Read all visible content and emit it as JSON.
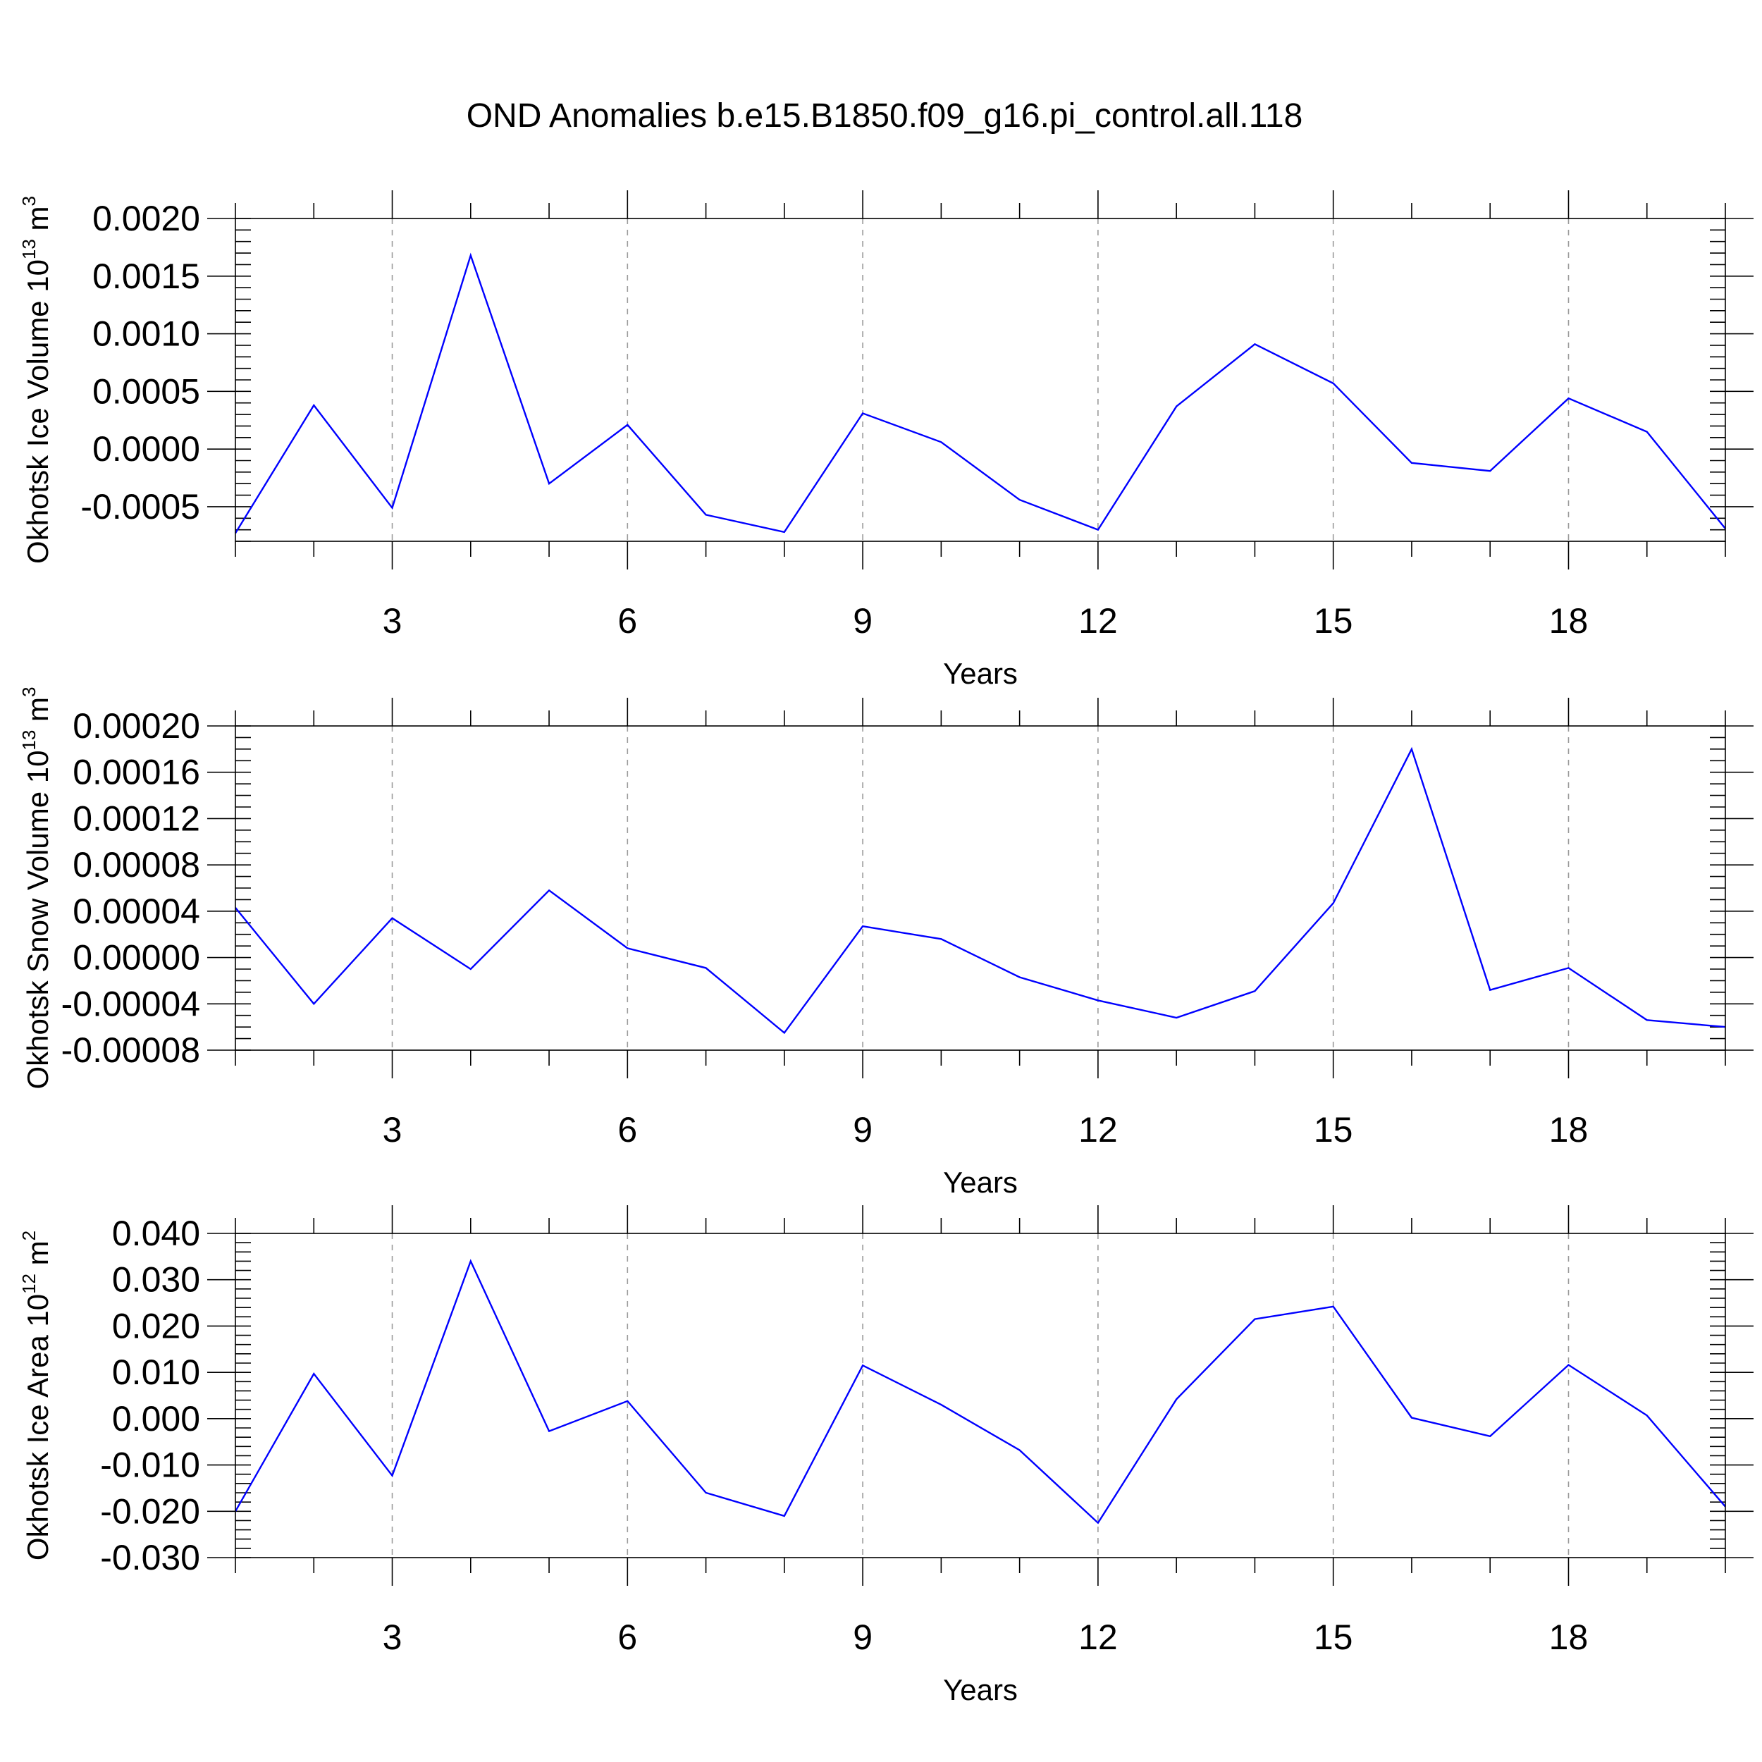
{
  "title": "OND Anomalies b.e15.B1850.f09_g16.pi_control.all.118",
  "colors": {
    "line": "#0000ff",
    "grid": "#9a9a9a",
    "axis": "#000000"
  },
  "chart_data": [
    {
      "type": "line",
      "ylabel": "Okhotsk Ice Volume 10",
      "ylabel_sup": "13",
      "ylabel_unit": "m",
      "ylabel_unit_sup": "3",
      "xlabel": "Years",
      "xlim": [
        1,
        20
      ],
      "ylim": [
        -0.0008,
        0.002
      ],
      "x_ticks": [
        3,
        6,
        9,
        12,
        15,
        18
      ],
      "x_tick_labels": [
        "3",
        "6",
        "9",
        "12",
        "15",
        "18"
      ],
      "y_ticks": [
        -0.0005,
        0.0,
        0.0005,
        0.001,
        0.0015,
        0.002
      ],
      "y_tick_labels": [
        "-0.0005",
        "0.0000",
        "0.0005",
        "0.0010",
        "0.0015",
        "0.0020"
      ],
      "y_minor_step": 0.0001,
      "grid": "vertical dashed at major x ticks",
      "series": [
        {
          "x": [
            1,
            2,
            3,
            4,
            5,
            6,
            7,
            8,
            9,
            10,
            11,
            12,
            13,
            14,
            15,
            16,
            17,
            18,
            19,
            20
          ],
          "values": [
            -0.00073,
            0.00038,
            -0.00051,
            0.00168,
            -0.0003,
            0.00021,
            -0.00057,
            -0.00072,
            0.00031,
            6e-05,
            -0.00044,
            -0.0007,
            0.00037,
            0.00091,
            0.00057,
            -0.00012,
            -0.00019,
            0.00044,
            0.00015,
            -0.00069
          ]
        }
      ]
    },
    {
      "type": "line",
      "ylabel": "Okhotsk Snow Volume 10",
      "ylabel_sup": "13",
      "ylabel_unit": "m",
      "ylabel_unit_sup": "3",
      "xlabel": "Years",
      "xlim": [
        1,
        20
      ],
      "ylim": [
        -8e-05,
        0.0002
      ],
      "x_ticks": [
        3,
        6,
        9,
        12,
        15,
        18
      ],
      "x_tick_labels": [
        "3",
        "6",
        "9",
        "12",
        "15",
        "18"
      ],
      "y_ticks": [
        -8e-05,
        -4e-05,
        0.0,
        4e-05,
        8e-05,
        0.00012,
        0.00016,
        0.0002
      ],
      "y_tick_labels": [
        "-0.00008",
        "-0.00004",
        "0.00000",
        "0.00004",
        "0.00008",
        "0.00012",
        "0.00016",
        "0.00020"
      ],
      "y_minor_step": 1e-05,
      "grid": "vertical dashed at major x ticks",
      "series": [
        {
          "x": [
            1,
            2,
            3,
            4,
            5,
            6,
            7,
            8,
            9,
            10,
            11,
            12,
            13,
            14,
            15,
            16,
            17,
            18,
            19,
            20
          ],
          "values": [
            4.3e-05,
            -4e-05,
            3.4e-05,
            -1e-05,
            5.8e-05,
            8e-06,
            -9e-06,
            -6.5e-05,
            2.7e-05,
            1.6e-05,
            -1.7e-05,
            -3.7e-05,
            -5.2e-05,
            -2.9e-05,
            4.7e-05,
            0.00018,
            -2.8e-05,
            -9e-06,
            -5.4e-05,
            -6e-05
          ]
        }
      ]
    },
    {
      "type": "line",
      "ylabel": "Okhotsk Ice Area 10",
      "ylabel_sup": "12",
      "ylabel_unit": "m",
      "ylabel_unit_sup": "2",
      "xlabel": "Years",
      "xlim": [
        1,
        20
      ],
      "ylim": [
        -0.03,
        0.04
      ],
      "x_ticks": [
        3,
        6,
        9,
        12,
        15,
        18
      ],
      "x_tick_labels": [
        "3",
        "6",
        "9",
        "12",
        "15",
        "18"
      ],
      "y_ticks": [
        -0.03,
        -0.02,
        -0.01,
        0.0,
        0.01,
        0.02,
        0.03,
        0.04
      ],
      "y_tick_labels": [
        "-0.030",
        "-0.020",
        "-0.010",
        "0.000",
        "0.010",
        "0.020",
        "0.030",
        "0.040"
      ],
      "y_minor_step": 0.002,
      "grid": "vertical dashed at major x ticks",
      "series": [
        {
          "x": [
            1,
            2,
            3,
            4,
            5,
            6,
            7,
            8,
            9,
            10,
            11,
            12,
            13,
            14,
            15,
            16,
            17,
            18,
            19,
            20
          ],
          "values": [
            -0.02,
            0.0097,
            -0.0123,
            0.034,
            -0.0027,
            0.0038,
            -0.016,
            -0.021,
            0.0115,
            0.003,
            -0.0068,
            -0.0225,
            0.0042,
            0.0215,
            0.0242,
            0.0002,
            -0.0038,
            0.0116,
            0.0007,
            -0.019
          ]
        }
      ]
    }
  ]
}
